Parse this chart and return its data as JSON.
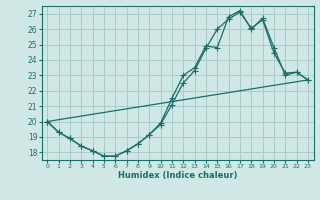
{
  "title": "",
  "xlabel": "Humidex (Indice chaleur)",
  "bg_color": "#cfe8e5",
  "grid_color": "#a8ccc8",
  "line_color": "#1a6e6a",
  "xlim": [
    -0.5,
    23.5
  ],
  "ylim": [
    17.5,
    27.5
  ],
  "xticks": [
    0,
    1,
    2,
    3,
    4,
    5,
    6,
    7,
    8,
    9,
    10,
    11,
    12,
    13,
    14,
    15,
    16,
    17,
    18,
    19,
    20,
    21,
    22,
    23
  ],
  "yticks": [
    18,
    19,
    20,
    21,
    22,
    23,
    24,
    25,
    26,
    27
  ],
  "curve1_x": [
    0,
    1,
    2,
    3,
    4,
    5,
    6,
    7,
    8,
    9,
    10,
    11,
    12,
    13,
    14,
    15,
    16,
    17,
    18,
    19,
    20,
    21,
    22,
    23
  ],
  "curve1_y": [
    20.0,
    19.3,
    18.9,
    18.4,
    18.1,
    17.75,
    17.75,
    18.1,
    18.55,
    19.15,
    19.8,
    21.1,
    22.5,
    23.3,
    24.75,
    26.0,
    26.65,
    27.1,
    26.05,
    26.6,
    24.45,
    23.15,
    23.2,
    22.7
  ],
  "curve2_x": [
    0,
    1,
    2,
    3,
    4,
    5,
    6,
    7,
    8,
    9,
    10,
    11,
    12,
    13,
    14,
    15,
    16,
    17,
    18,
    19,
    20,
    21,
    22,
    23
  ],
  "curve2_y": [
    20.0,
    19.3,
    18.9,
    18.4,
    18.1,
    17.75,
    17.75,
    18.1,
    18.55,
    19.15,
    19.9,
    21.5,
    23.0,
    23.5,
    24.9,
    24.8,
    26.8,
    27.2,
    26.0,
    26.7,
    24.8,
    23.0,
    23.2,
    22.7
  ],
  "line3_x": [
    0,
    23
  ],
  "line3_y": [
    20.0,
    22.7
  ],
  "marker_size": 4,
  "line_width": 0.9
}
